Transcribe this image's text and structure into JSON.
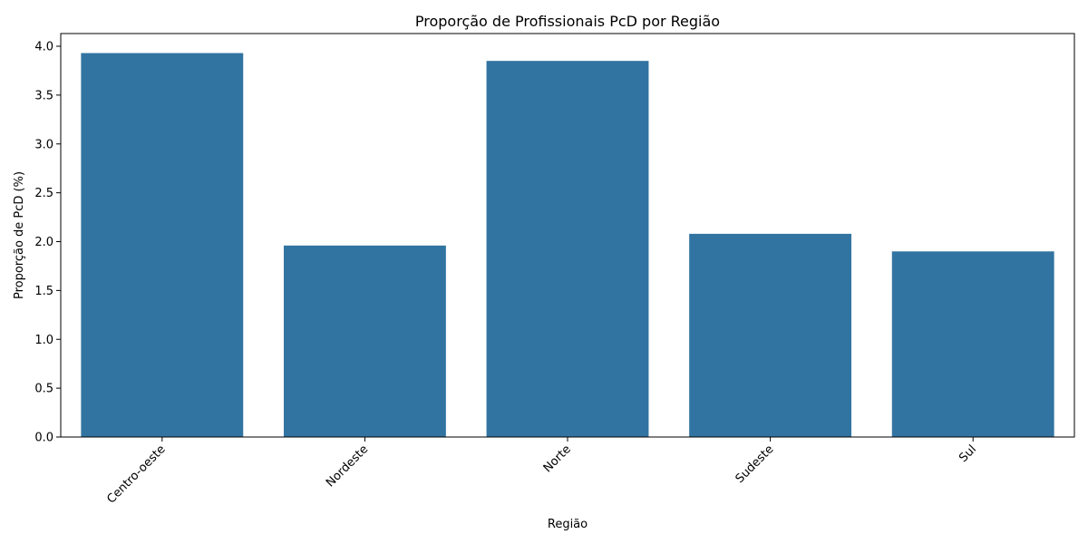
{
  "chart_data": {
    "type": "bar",
    "title": "Proporção de Profissionais PcD por Região",
    "xlabel": "Região",
    "ylabel": "Proporção de PcD (%)",
    "categories": [
      "Centro-oeste",
      "Nordeste",
      "Norte",
      "Sudeste",
      "Sul"
    ],
    "values": [
      3.93,
      1.96,
      3.85,
      2.08,
      1.9
    ],
    "ylim": [
      0,
      4.13
    ],
    "yticks": [
      "0.0",
      "0.5",
      "1.0",
      "1.5",
      "2.0",
      "2.5",
      "3.0",
      "3.5",
      "4.0"
    ],
    "bar_color": "#3274a1",
    "grid": false,
    "xtick_rotation": 45
  }
}
